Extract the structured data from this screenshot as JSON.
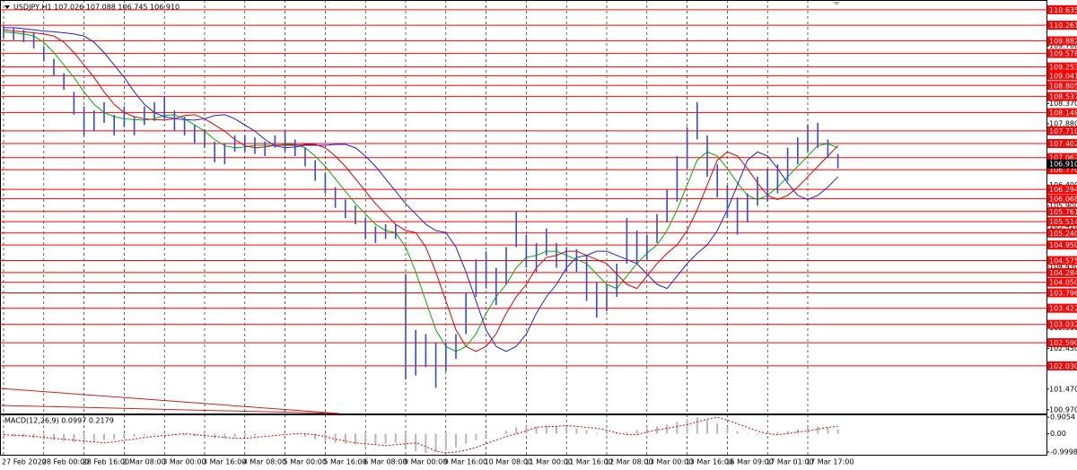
{
  "chart_data": {
    "type": "hl-bar",
    "title": "USDJPY,H1  107.026 107.088 106.745 106.910",
    "categories": [
      "27 Feb 2020",
      null,
      null,
      null,
      "28 Feb 00:00",
      null,
      null,
      null,
      "28 Feb 16:00",
      null,
      null,
      null,
      "2 Mar 08:00",
      null,
      null,
      null,
      "3 Mar 00:00",
      null,
      null,
      null,
      "3 Mar 16:00",
      null,
      null,
      null,
      "4 Mar 08:00",
      null,
      null,
      null,
      "5 Mar 00:00",
      null,
      null,
      null,
      "5 Mar 16:00",
      null,
      null,
      null,
      "6 Mar 08:00",
      null,
      null,
      null,
      "9 Mar 00:00",
      null,
      null,
      null,
      "9 Mar 16:00",
      null,
      null,
      null,
      "10 Mar 08:00",
      null,
      null,
      null,
      "11 Mar 00:00",
      null,
      null,
      null,
      "11 Mar 16:00",
      null,
      null,
      null,
      "12 Mar 08:00",
      null,
      null,
      null,
      "13 Mar 00:00",
      null,
      null,
      null,
      "13 Mar 16:00",
      null,
      null,
      null,
      "16 Mar 09:00",
      null,
      null,
      null,
      "17 Mar 01:00",
      null,
      null,
      null,
      "17 Mar 17:00",
      null,
      null,
      null
    ],
    "color": "#2a4fd8",
    "high": [
      110.27,
      110.2,
      110.15,
      110.1,
      109.75,
      109.45,
      109.1,
      108.65,
      108.3,
      108.2,
      108.4,
      108.1,
      108.3,
      108.05,
      108.3,
      108.4,
      108.55,
      108.2,
      108.05,
      107.85,
      107.75,
      107.45,
      107.4,
      107.6,
      107.6,
      107.55,
      107.45,
      107.6,
      107.7,
      107.5,
      107.3,
      107.0,
      106.7,
      106.35,
      106.05,
      105.9,
      105.6,
      105.4,
      105.45,
      105.45,
      104.25,
      102.9,
      102.8,
      102.6,
      102.6,
      102.8,
      103.8,
      104.6,
      104.8,
      104.4,
      104.9,
      105.75,
      105.2,
      105.0,
      105.35,
      105.0,
      104.9,
      104.85,
      104.7,
      104.05,
      104.0,
      104.5,
      105.6,
      105.3,
      105.2,
      105.7,
      106.3,
      107.1,
      107.8,
      108.4,
      107.6,
      106.9,
      106.4,
      106.1,
      106.2,
      106.6,
      106.8,
      106.9,
      107.3,
      107.55,
      107.85,
      107.9,
      107.5,
      107.15
    ],
    "low": [
      109.95,
      109.9,
      109.85,
      109.7,
      109.4,
      109.05,
      108.7,
      108.1,
      107.6,
      107.7,
      107.9,
      107.6,
      107.8,
      107.6,
      107.85,
      107.95,
      108.0,
      107.7,
      107.6,
      107.4,
      107.3,
      106.95,
      106.9,
      107.2,
      107.2,
      107.15,
      107.1,
      107.3,
      107.2,
      107.1,
      106.85,
      106.5,
      106.2,
      105.85,
      105.6,
      105.45,
      105.1,
      105.0,
      105.1,
      105.1,
      101.7,
      101.8,
      102.0,
      101.5,
      101.9,
      102.2,
      102.8,
      103.7,
      103.9,
      103.5,
      104.0,
      104.9,
      104.4,
      104.3,
      104.7,
      104.4,
      104.3,
      104.3,
      103.6,
      103.2,
      103.35,
      103.7,
      104.5,
      104.5,
      104.6,
      105.0,
      105.5,
      106.0,
      106.8,
      107.5,
      106.6,
      106.1,
      105.6,
      105.2,
      105.5,
      105.9,
      106.0,
      106.2,
      106.5,
      106.9,
      107.2,
      107.3,
      107.05,
      106.8
    ],
    "moving_averages": [
      {
        "color": "#00b000",
        "values": [
          110.1,
          110.08,
          110.05,
          110.0,
          109.85,
          109.6,
          109.3,
          109.0,
          108.65,
          108.35,
          108.15,
          108.05,
          108.0,
          107.98,
          107.97,
          108.0,
          108.08,
          108.1,
          108.0,
          107.85,
          107.7,
          107.5,
          107.35,
          107.3,
          107.32,
          107.36,
          107.36,
          107.36,
          107.38,
          107.38,
          107.3,
          107.1,
          106.85,
          106.55,
          106.25,
          105.95,
          105.7,
          105.45,
          105.3,
          105.25,
          104.9,
          104.3,
          103.6,
          102.9,
          102.5,
          102.38,
          102.5,
          102.8,
          103.3,
          103.7,
          104.0,
          104.4,
          104.65,
          104.7,
          104.8,
          104.8,
          104.7,
          104.6,
          104.5,
          104.25,
          104.0,
          103.9,
          104.2,
          104.5,
          104.75,
          104.95,
          105.3,
          105.8,
          106.4,
          107.0,
          107.2,
          107.1,
          106.8,
          106.45,
          106.15,
          106.05,
          106.15,
          106.35,
          106.6,
          106.85,
          107.1,
          107.35,
          107.4,
          107.3
        ]
      },
      {
        "color": "#e00000",
        "values": [
          110.15,
          110.12,
          110.1,
          110.08,
          110.05,
          110.0,
          109.85,
          109.6,
          109.3,
          109.0,
          108.65,
          108.35,
          108.15,
          108.05,
          108.0,
          107.98,
          107.97,
          108.0,
          108.08,
          108.1,
          108.0,
          107.85,
          107.7,
          107.5,
          107.35,
          107.3,
          107.32,
          107.36,
          107.36,
          107.36,
          107.38,
          107.38,
          107.3,
          107.1,
          106.85,
          106.55,
          106.25,
          105.95,
          105.7,
          105.45,
          105.3,
          105.25,
          104.9,
          104.3,
          103.6,
          102.9,
          102.5,
          102.38,
          102.5,
          102.8,
          103.3,
          103.7,
          104.0,
          104.4,
          104.65,
          104.7,
          104.8,
          104.8,
          104.7,
          104.6,
          104.5,
          104.25,
          104.0,
          103.9,
          104.2,
          104.5,
          104.75,
          104.95,
          105.3,
          105.8,
          106.4,
          107.0,
          107.2,
          107.1,
          106.8,
          106.45,
          106.15,
          106.05,
          106.15,
          106.35,
          106.6,
          106.85,
          107.1,
          107.35
        ]
      },
      {
        "color": "#2020e0",
        "values": [
          110.2,
          110.2,
          110.18,
          110.15,
          110.12,
          110.1,
          110.08,
          110.05,
          110.0,
          109.85,
          109.6,
          109.3,
          109.0,
          108.65,
          108.35,
          108.15,
          108.05,
          108.0,
          107.98,
          107.97,
          108.0,
          108.08,
          108.1,
          108.0,
          107.85,
          107.7,
          107.5,
          107.35,
          107.3,
          107.32,
          107.36,
          107.36,
          107.36,
          107.38,
          107.38,
          107.3,
          107.1,
          106.85,
          106.55,
          106.25,
          105.95,
          105.7,
          105.45,
          105.3,
          105.25,
          104.9,
          104.3,
          103.6,
          102.9,
          102.5,
          102.38,
          102.5,
          102.8,
          103.3,
          103.7,
          104.0,
          104.4,
          104.65,
          104.7,
          104.8,
          104.8,
          104.7,
          104.6,
          104.5,
          104.25,
          104.0,
          103.9,
          104.2,
          104.5,
          104.75,
          104.95,
          105.3,
          105.8,
          106.4,
          107.0,
          107.2,
          107.1,
          106.8,
          106.45,
          106.15,
          106.05,
          106.15,
          106.35,
          106.6
        ]
      }
    ],
    "ylim": [
      100.88,
      110.87
    ],
    "yticks": [
      {
        "value": 109.76,
        "label": "109.760"
      },
      {
        "value": 108.37,
        "label": "108.370"
      },
      {
        "value": 107.88,
        "label": "107.880"
      },
      {
        "value": 106.4,
        "label": "106.400"
      },
      {
        "value": 105.9,
        "label": "105.900"
      },
      {
        "value": 105.41,
        "label": "105.410"
      },
      {
        "value": 104.43,
        "label": "104.430"
      },
      {
        "value": 102.95,
        "label": "102.950"
      },
      {
        "value": 102.45,
        "label": "102.450"
      },
      {
        "value": 101.47,
        "label": "101.470"
      },
      {
        "value": 100.97,
        "label": "100.970"
      }
    ],
    "levels": [
      110.635,
      110.261,
      109.882,
      109.578,
      109.253,
      109.041,
      108.805,
      108.537,
      108.148,
      {
        "value": 107.71,
        "label": "107.710"
      },
      107.402,
      107.062,
      {
        "value": 106.77,
        "label": "106.770"
      },
      106.294,
      106.068,
      105.761,
      105.514,
      {
        "value": 105.24,
        "label": "105.240"
      },
      {
        "value": 104.95,
        "label": "104.950"
      },
      104.575,
      104.284,
      {
        "value": 104.05,
        "label": "104.050"
      },
      103.796,
      103.422,
      103.032,
      {
        "value": 102.59,
        "label": "102.590"
      },
      {
        "value": 102.03,
        "label": "102.030"
      }
    ],
    "level_color": "#ff0000",
    "current_price": {
      "value": 106.91,
      "label": "106.910"
    },
    "grid": true,
    "macd": {
      "title": "MACD(12,26,9) 0.0997 0.2179",
      "color": "#b8b8b8",
      "signal_color": "#e00000",
      "values": [
        -0.1,
        -0.15,
        -0.2,
        -0.25,
        -0.3,
        -0.35,
        -0.4,
        -0.45,
        -0.5,
        -0.45,
        -0.35,
        -0.3,
        -0.2,
        -0.15,
        -0.1,
        -0.05,
        0,
        -0.05,
        -0.1,
        -0.15,
        -0.2,
        -0.25,
        -0.25,
        -0.2,
        -0.15,
        -0.1,
        -0.05,
        0,
        0,
        -0.05,
        -0.15,
        -0.3,
        -0.4,
        -0.5,
        -0.55,
        -0.6,
        -0.65,
        -0.6,
        -0.55,
        -0.5,
        -0.7,
        -0.95,
        -1.05,
        -1.0,
        -0.9,
        -0.75,
        -0.55,
        -0.35,
        -0.15,
        0,
        0.15,
        0.35,
        0.4,
        0.4,
        0.45,
        0.4,
        0.35,
        0.3,
        0.2,
        0.05,
        -0.05,
        -0.05,
        0.1,
        0.2,
        0.3,
        0.4,
        0.5,
        0.65,
        0.8,
        0.9,
        0.75,
        0.55,
        0.35,
        0.15,
        0,
        -0.05,
        0,
        0.1,
        0.15,
        0.25,
        0.35,
        0.4,
        0.35,
        0.25
      ],
      "signal": [
        -0.05,
        -0.08,
        -0.1,
        -0.15,
        -0.2,
        -0.25,
        -0.3,
        -0.35,
        -0.4,
        -0.45,
        -0.5,
        -0.45,
        -0.35,
        -0.3,
        -0.2,
        -0.15,
        -0.1,
        -0.05,
        0,
        -0.05,
        -0.1,
        -0.15,
        -0.2,
        -0.25,
        -0.25,
        -0.2,
        -0.15,
        -0.1,
        -0.05,
        0,
        0,
        -0.05,
        -0.15,
        -0.3,
        -0.4,
        -0.5,
        -0.55,
        -0.6,
        -0.65,
        -0.6,
        -0.55,
        -0.5,
        -0.7,
        -0.95,
        -1.05,
        -1.0,
        -0.9,
        -0.75,
        -0.55,
        -0.35,
        -0.15,
        0,
        0.15,
        0.35,
        0.4,
        0.4,
        0.45,
        0.4,
        0.35,
        0.3,
        0.2,
        0.05,
        -0.05,
        -0.05,
        0.1,
        0.2,
        0.3,
        0.4,
        0.5,
        0.65,
        0.8,
        0.9,
        0.75,
        0.55,
        0.35,
        0.15,
        0,
        -0.05,
        0,
        0.1,
        0.15,
        0.25,
        0.35,
        0.4
      ],
      "ylim": [
        -1.15,
        1.06
      ],
      "yticks": [
        0.9054,
        {
          "value": 0,
          "label": "0.00"
        },
        -0.9998
      ]
    }
  }
}
